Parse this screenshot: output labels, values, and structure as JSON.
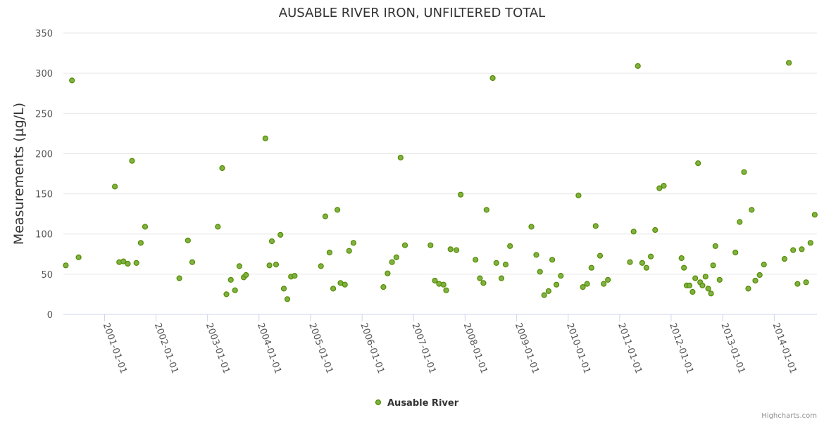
{
  "chart_data": {
    "type": "scatter",
    "title": "AUSABLE RIVER IRON, UNFILTERED TOTAL",
    "ylabel": "Measurements (µg/L)",
    "xlabel": "",
    "ylim": [
      0,
      350
    ],
    "xlim": [
      "2000-03-15",
      "2014-10-31"
    ],
    "yticks": [
      0,
      50,
      100,
      150,
      200,
      250,
      300,
      350
    ],
    "xticks": [
      "2001-01-01",
      "2002-01-01",
      "2003-01-01",
      "2004-01-01",
      "2005-01-01",
      "2006-01-01",
      "2007-01-01",
      "2008-01-01",
      "2009-01-01",
      "2010-01-01",
      "2011-01-01",
      "2012-01-01",
      "2013-01-01",
      "2014-01-01"
    ],
    "grid": true,
    "legend_position": "bottom-center",
    "colors": {
      "marker_fill": "#7cb342",
      "marker_stroke": "#5a8a00"
    },
    "series": [
      {
        "name": "Ausable River",
        "points": [
          [
            "2000-04-01",
            61
          ],
          [
            "2000-05-15",
            291
          ],
          [
            "2000-07-01",
            71
          ],
          [
            "2001-03-15",
            159
          ],
          [
            "2001-04-15",
            65
          ],
          [
            "2001-05-15",
            66
          ],
          [
            "2001-06-15",
            63
          ],
          [
            "2001-07-15",
            191
          ],
          [
            "2001-08-15",
            64
          ],
          [
            "2001-09-15",
            89
          ],
          [
            "2001-10-15",
            109
          ],
          [
            "2002-06-15",
            45
          ],
          [
            "2002-08-15",
            92
          ],
          [
            "2002-09-15",
            65
          ],
          [
            "2003-03-15",
            109
          ],
          [
            "2003-04-15",
            182
          ],
          [
            "2003-05-15",
            25
          ],
          [
            "2003-06-15",
            43
          ],
          [
            "2003-07-15",
            30
          ],
          [
            "2003-08-15",
            60
          ],
          [
            "2003-09-15",
            46
          ],
          [
            "2003-10-01",
            49
          ],
          [
            "2004-02-15",
            219
          ],
          [
            "2004-03-15",
            61
          ],
          [
            "2004-04-01",
            91
          ],
          [
            "2004-05-01",
            62
          ],
          [
            "2004-06-01",
            99
          ],
          [
            "2004-06-25",
            32
          ],
          [
            "2004-07-20",
            19
          ],
          [
            "2004-08-15",
            47
          ],
          [
            "2004-09-10",
            48
          ],
          [
            "2005-03-15",
            60
          ],
          [
            "2005-04-15",
            122
          ],
          [
            "2005-05-15",
            77
          ],
          [
            "2005-06-10",
            32
          ],
          [
            "2005-07-10",
            130
          ],
          [
            "2005-08-01",
            39
          ],
          [
            "2005-09-01",
            37
          ],
          [
            "2005-10-01",
            79
          ],
          [
            "2005-11-01",
            89
          ],
          [
            "2006-06-01",
            34
          ],
          [
            "2006-07-01",
            51
          ],
          [
            "2006-08-01",
            65
          ],
          [
            "2006-09-01",
            71
          ],
          [
            "2006-10-01",
            195
          ],
          [
            "2006-11-01",
            86
          ],
          [
            "2007-05-01",
            86
          ],
          [
            "2007-06-01",
            42
          ],
          [
            "2007-07-01",
            38
          ],
          [
            "2007-08-01",
            37
          ],
          [
            "2007-08-20",
            30
          ],
          [
            "2007-09-20",
            81
          ],
          [
            "2007-11-01",
            80
          ],
          [
            "2007-12-01",
            149
          ],
          [
            "2008-03-15",
            68
          ],
          [
            "2008-04-15",
            45
          ],
          [
            "2008-05-10",
            39
          ],
          [
            "2008-06-01",
            130
          ],
          [
            "2008-07-15",
            294
          ],
          [
            "2008-08-10",
            64
          ],
          [
            "2008-09-15",
            45
          ],
          [
            "2008-10-15",
            62
          ],
          [
            "2008-11-15",
            85
          ],
          [
            "2009-04-15",
            109
          ],
          [
            "2009-05-20",
            74
          ],
          [
            "2009-06-15",
            53
          ],
          [
            "2009-07-15",
            24
          ],
          [
            "2009-08-15",
            29
          ],
          [
            "2009-09-10",
            68
          ],
          [
            "2009-10-10",
            37
          ],
          [
            "2009-11-10",
            48
          ],
          [
            "2010-03-15",
            148
          ],
          [
            "2010-04-15",
            34
          ],
          [
            "2010-05-15",
            38
          ],
          [
            "2010-06-15",
            58
          ],
          [
            "2010-07-15",
            110
          ],
          [
            "2010-08-15",
            73
          ],
          [
            "2010-09-10",
            38
          ],
          [
            "2010-10-10",
            43
          ],
          [
            "2011-03-15",
            65
          ],
          [
            "2011-04-10",
            103
          ],
          [
            "2011-05-10",
            309
          ],
          [
            "2011-06-10",
            64
          ],
          [
            "2011-07-10",
            58
          ],
          [
            "2011-08-10",
            72
          ],
          [
            "2011-09-10",
            105
          ],
          [
            "2011-10-10",
            157
          ],
          [
            "2011-11-10",
            160
          ],
          [
            "2012-03-15",
            70
          ],
          [
            "2012-04-01",
            58
          ],
          [
            "2012-04-20",
            36
          ],
          [
            "2012-05-10",
            36
          ],
          [
            "2012-06-01",
            28
          ],
          [
            "2012-06-20",
            45
          ],
          [
            "2012-07-10",
            188
          ],
          [
            "2012-07-25",
            40
          ],
          [
            "2012-08-10",
            36
          ],
          [
            "2012-09-01",
            47
          ],
          [
            "2012-09-20",
            32
          ],
          [
            "2012-10-10",
            26
          ],
          [
            "2012-10-25",
            61
          ],
          [
            "2012-11-10",
            85
          ],
          [
            "2012-12-10",
            43
          ],
          [
            "2013-04-01",
            77
          ],
          [
            "2013-05-01",
            115
          ],
          [
            "2013-06-01",
            177
          ],
          [
            "2013-07-01",
            32
          ],
          [
            "2013-07-25",
            130
          ],
          [
            "2013-08-20",
            42
          ],
          [
            "2013-09-20",
            49
          ],
          [
            "2013-10-20",
            62
          ],
          [
            "2014-03-15",
            69
          ],
          [
            "2014-04-15",
            313
          ],
          [
            "2014-05-15",
            80
          ],
          [
            "2014-06-15",
            38
          ],
          [
            "2014-07-15",
            81
          ],
          [
            "2014-08-15",
            40
          ],
          [
            "2014-09-15",
            89
          ],
          [
            "2014-10-15",
            124
          ]
        ]
      }
    ],
    "credits": "Highcharts.com"
  }
}
